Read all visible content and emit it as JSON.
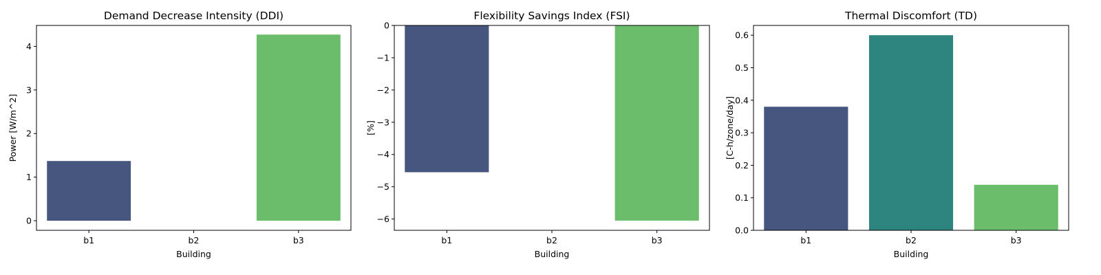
{
  "chart_data": [
    {
      "type": "bar",
      "title": "Demand Decrease Intensity (DDI)",
      "xlabel": "Building",
      "ylabel": "Power [W/m^2]",
      "categories": [
        "b1",
        "b2",
        "b3"
      ],
      "values": [
        1.37,
        null,
        4.27
      ],
      "ylim": [
        -0.22,
        4.48
      ],
      "yticks": [
        0,
        1,
        2,
        3,
        4
      ],
      "ytick_labels": [
        "0",
        "1",
        "2",
        "3",
        "4"
      ],
      "colors": [
        "#46567f",
        "#2e8580",
        "#6bbd6c"
      ],
      "grid": false
    },
    {
      "type": "bar",
      "title": "Flexibility Savings Index (FSI)",
      "xlabel": "Building",
      "ylabel": "[%]",
      "categories": [
        "b1",
        "b2",
        "b3"
      ],
      "values": [
        -4.55,
        null,
        -6.05
      ],
      "ylim": [
        -6.35,
        0
      ],
      "yticks": [
        0,
        -1,
        -2,
        -3,
        -4,
        -5,
        -6
      ],
      "ytick_labels": [
        "0",
        "−1",
        "−2",
        "−3",
        "−4",
        "−5",
        "−6"
      ],
      "colors": [
        "#46567f",
        "#2e8580",
        "#6bbd6c"
      ],
      "grid": false
    },
    {
      "type": "bar",
      "title": "Thermal Discomfort (TD)",
      "xlabel": "Building",
      "ylabel": "[C-h/zone/day]",
      "categories": [
        "b1",
        "b2",
        "b3"
      ],
      "values": [
        0.38,
        0.6,
        0.14
      ],
      "ylim": [
        0,
        0.63
      ],
      "yticks": [
        0,
        0.1,
        0.2,
        0.3,
        0.4,
        0.5,
        0.6
      ],
      "ytick_labels": [
        "0.0",
        "0.1",
        "0.2",
        "0.3",
        "0.4",
        "0.5",
        "0.6"
      ],
      "colors": [
        "#46567f",
        "#2e8580",
        "#6bbd6c"
      ],
      "grid": false
    }
  ]
}
